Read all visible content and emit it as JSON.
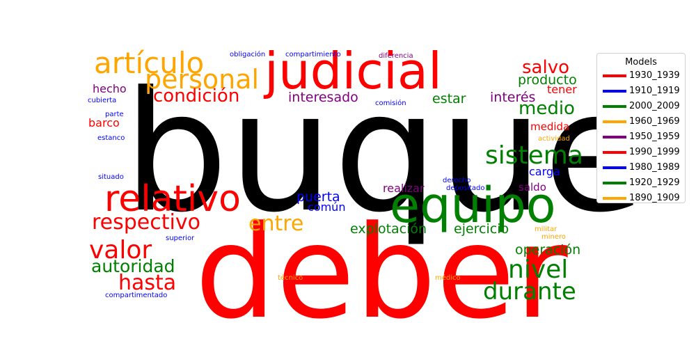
{
  "chart_data": {
    "type": "wordcloud",
    "legend": {
      "title": "Models",
      "placement": "right",
      "entries": [
        {
          "label": "1930_1939",
          "color": "#ff0000"
        },
        {
          "label": "1910_1919",
          "color": "#0000ff"
        },
        {
          "label": "2000_2009",
          "color": "#008000"
        },
        {
          "label": "1960_1969",
          "color": "#ffa500"
        },
        {
          "label": "1950_1959",
          "color": "#800080"
        },
        {
          "label": "1990_1999",
          "color": "#ff0000"
        },
        {
          "label": "1980_1989",
          "color": "#0000ff"
        },
        {
          "label": "1920_1929",
          "color": "#008000"
        },
        {
          "label": "1890_1909",
          "color": "#ffa500"
        }
      ]
    },
    "words": [
      {
        "text": "buque",
        "color": "#000000"
      },
      {
        "text": "deber",
        "color": "#ff0000"
      },
      {
        "text": "judicial",
        "color": "#ff0000"
      },
      {
        "text": "equipo",
        "color": "#008000"
      },
      {
        "text": "relativo",
        "color": "#ff0000"
      },
      {
        "text": "artículo",
        "color": "#ffa500"
      },
      {
        "text": "personal",
        "color": "#ffa500"
      },
      {
        "text": "sistema",
        "color": "#008000"
      },
      {
        "text": "valor",
        "color": "#ff0000"
      },
      {
        "text": "nivel",
        "color": "#008000"
      },
      {
        "text": "durante",
        "color": "#008000"
      },
      {
        "text": "hasta",
        "color": "#ff0000"
      },
      {
        "text": "respectivo",
        "color": "#ff0000"
      },
      {
        "text": "autoridad",
        "color": "#008000"
      },
      {
        "text": "entre",
        "color": "#ffa500"
      },
      {
        "text": "condición",
        "color": "#ff0000"
      },
      {
        "text": "salvo",
        "color": "#ff0000"
      },
      {
        "text": "medio",
        "color": "#008000"
      },
      {
        "text": "operación",
        "color": "#008000"
      },
      {
        "text": "explotación",
        "color": "#008000"
      },
      {
        "text": "ejercicio",
        "color": "#008000"
      },
      {
        "text": "interesado",
        "color": "#800080"
      },
      {
        "text": "producto",
        "color": "#008000"
      },
      {
        "text": "puerta",
        "color": "#0000ff"
      },
      {
        "text": "estar",
        "color": "#008000"
      },
      {
        "text": "interés",
        "color": "#800080"
      },
      {
        "text": "tener",
        "color": "#ff0000"
      },
      {
        "text": "común",
        "color": "#0000ff"
      },
      {
        "text": "realizar",
        "color": "#800080"
      },
      {
        "text": "hecho",
        "color": "#800080"
      },
      {
        "text": "barco",
        "color": "#ff0000"
      },
      {
        "text": "medida",
        "color": "#ff0000"
      },
      {
        "text": "carga",
        "color": "#0000ff"
      },
      {
        "text": "saldo",
        "color": "#800080"
      },
      {
        "text": "obligación",
        "color": "#0000ff"
      },
      {
        "text": "compartimiento",
        "color": "#0000ff"
      },
      {
        "text": "diferencia",
        "color": "#800080"
      },
      {
        "text": "cubierta",
        "color": "#0000ff"
      },
      {
        "text": "parte",
        "color": "#0000ff"
      },
      {
        "text": "estanco",
        "color": "#0000ff"
      },
      {
        "text": "comisión",
        "color": "#0000ff"
      },
      {
        "text": "actividad",
        "color": "#ffa500"
      },
      {
        "text": "situado",
        "color": "#0000ff"
      },
      {
        "text": "derecho",
        "color": "#0000ff"
      },
      {
        "text": "depositado",
        "color": "#0000ff"
      },
      {
        "text": "superior",
        "color": "#0000ff"
      },
      {
        "text": "militar",
        "color": "#ffa500"
      },
      {
        "text": "minero",
        "color": "#ffa500"
      },
      {
        "text": "técnico",
        "color": "#ffa500"
      },
      {
        "text": "médico",
        "color": "#ffa500"
      },
      {
        "text": "compartimentado",
        "color": "#0000ff"
      }
    ]
  }
}
